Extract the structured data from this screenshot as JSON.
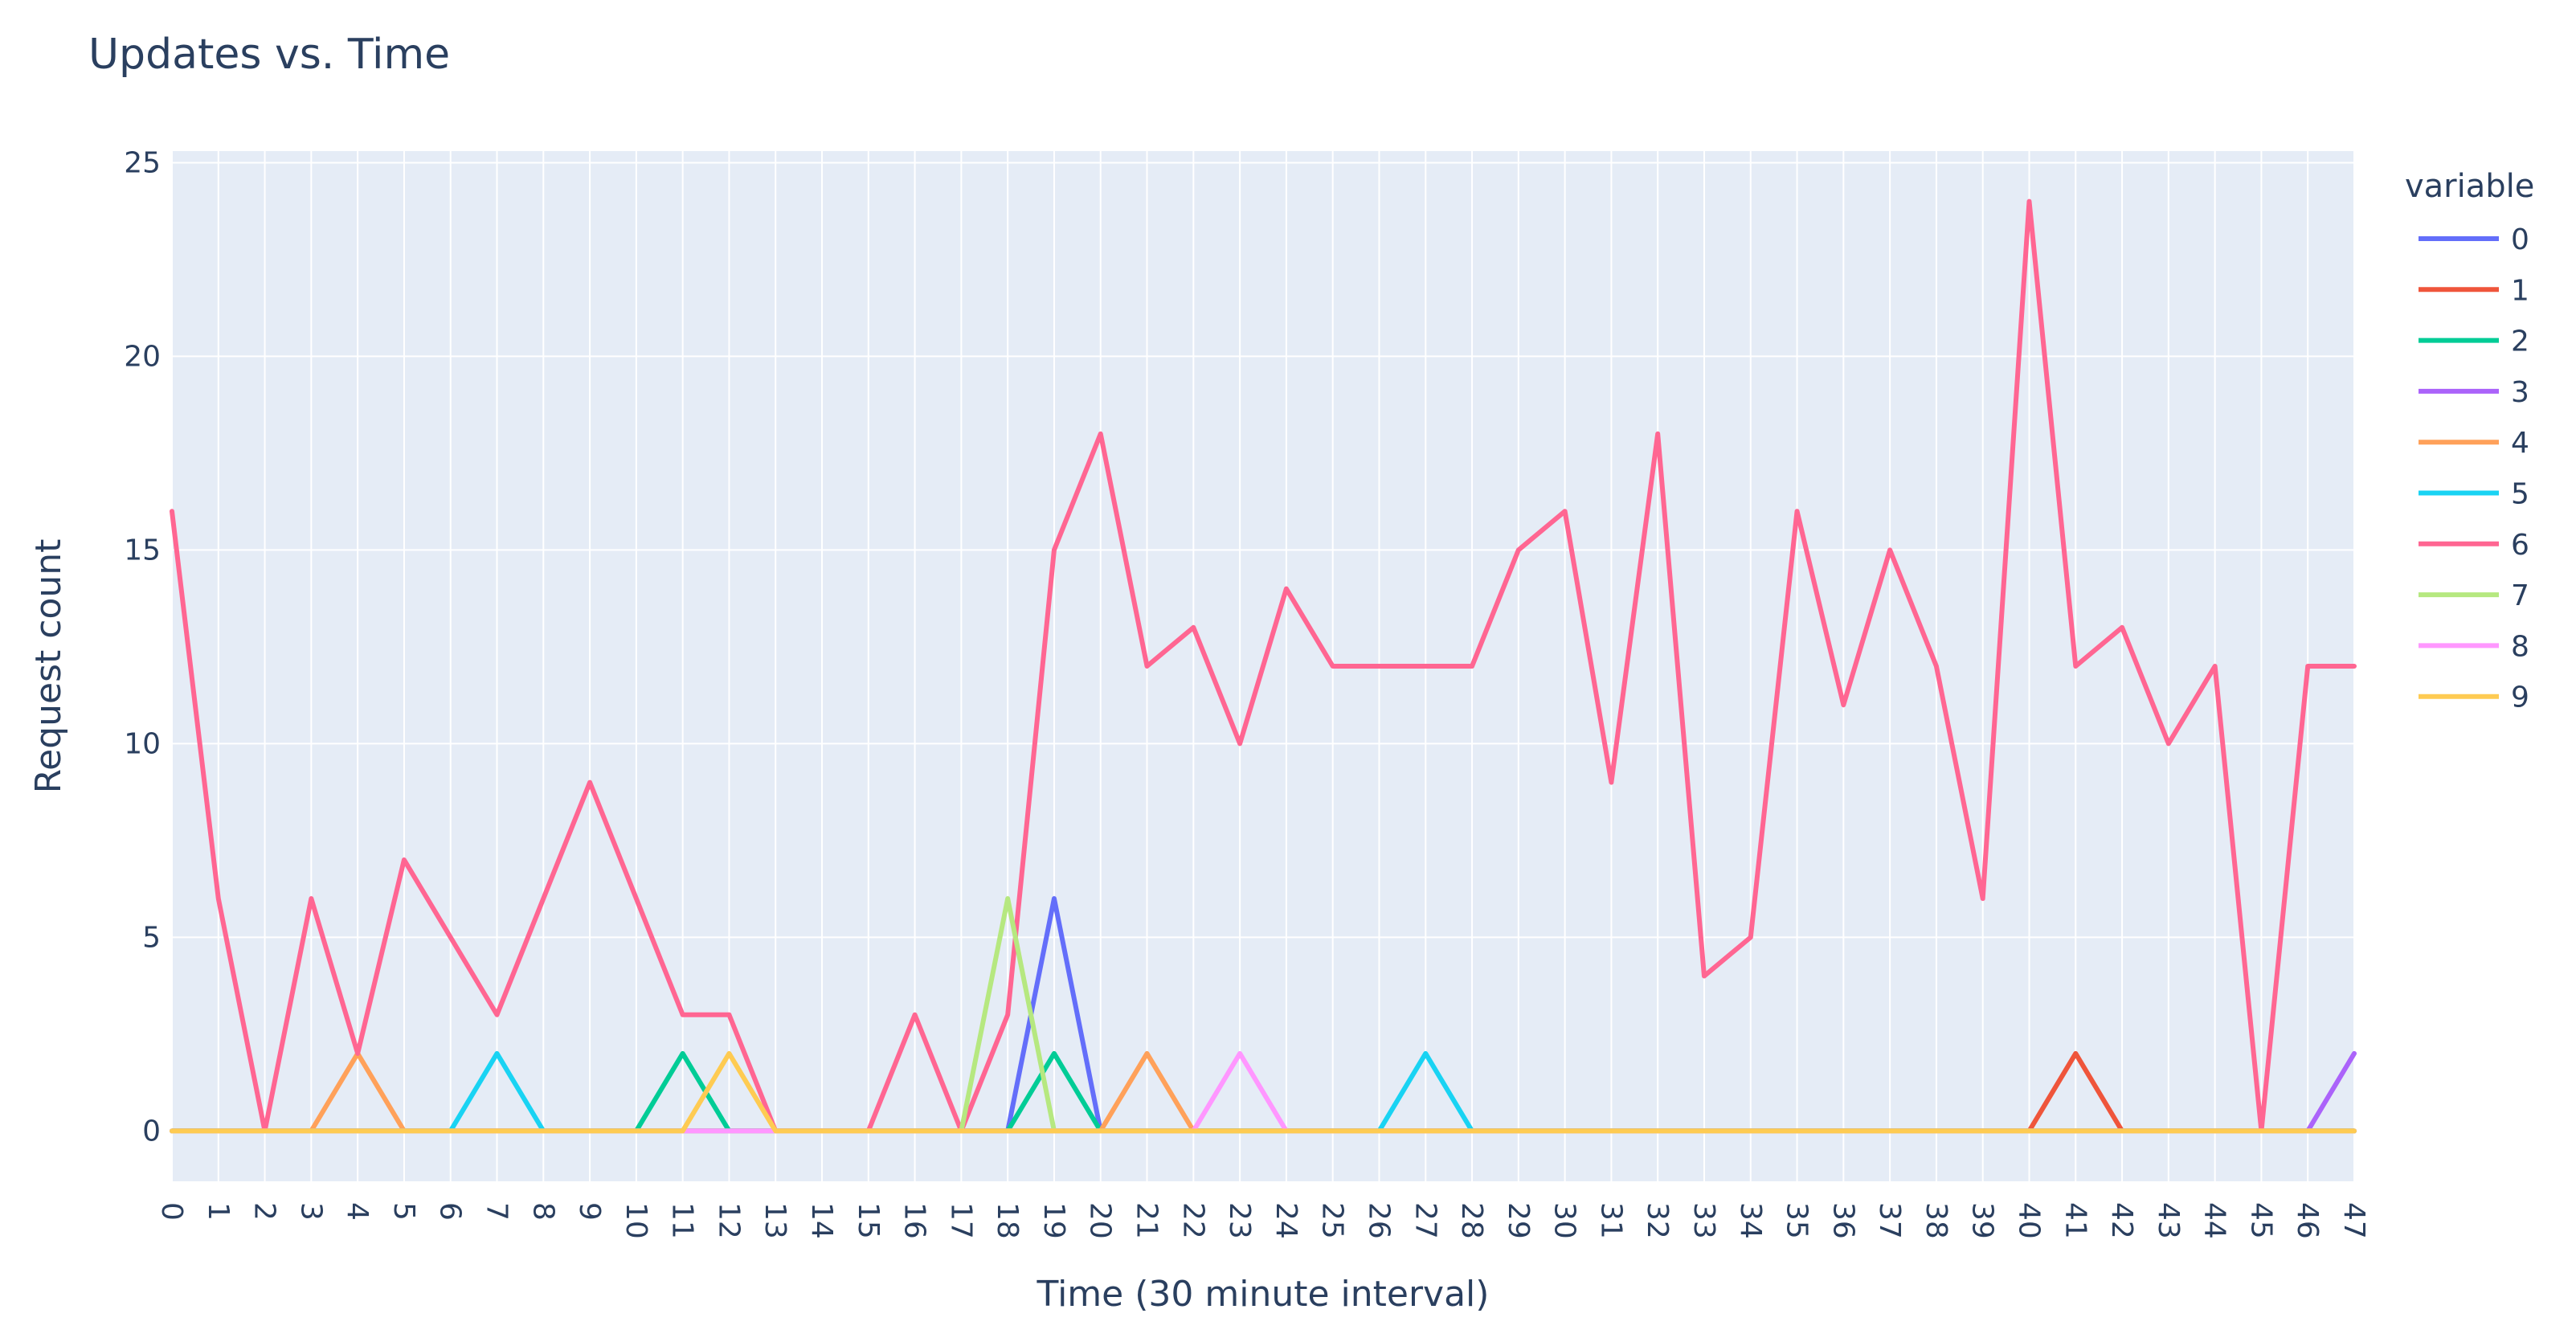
{
  "chart_data": {
    "type": "line",
    "title": "Updates vs. Time",
    "xlabel": "Time (30 minute interval)",
    "ylabel": "Request count",
    "x": [
      0,
      1,
      2,
      3,
      4,
      5,
      6,
      7,
      8,
      9,
      10,
      11,
      12,
      13,
      14,
      15,
      16,
      17,
      18,
      19,
      20,
      21,
      22,
      23,
      24,
      25,
      26,
      27,
      28,
      29,
      30,
      31,
      32,
      33,
      34,
      35,
      36,
      37,
      38,
      39,
      40,
      41,
      42,
      43,
      44,
      45,
      46,
      47
    ],
    "x_tick_labels": [
      "0",
      "1",
      "2",
      "3",
      "4",
      "5",
      "6",
      "7",
      "8",
      "9",
      "10",
      "11",
      "12",
      "13",
      "14",
      "15",
      "16",
      "17",
      "18",
      "19",
      "20",
      "21",
      "22",
      "23",
      "24",
      "25",
      "26",
      "27",
      "28",
      "29",
      "30",
      "31",
      "32",
      "33",
      "34",
      "35",
      "36",
      "37",
      "38",
      "39",
      "40",
      "41",
      "42",
      "43",
      "44",
      "45",
      "46",
      "47"
    ],
    "xlim": [
      0,
      47
    ],
    "ylim": [
      -1.3,
      25.3
    ],
    "y_ticks": [
      0,
      5,
      10,
      15,
      20,
      25
    ],
    "y_tick_labels": [
      "0",
      "5",
      "10",
      "15",
      "20",
      "25"
    ],
    "grid": true,
    "legend_title": "variable",
    "legend_position": "right",
    "plot_background": "#e5ecf6",
    "series": [
      {
        "name": "0",
        "color": "#636efa",
        "values": [
          0,
          0,
          0,
          0,
          0,
          0,
          0,
          0,
          0,
          0,
          0,
          0,
          0,
          0,
          0,
          0,
          0,
          0,
          0,
          6,
          0,
          0,
          0,
          0,
          0,
          0,
          0,
          0,
          0,
          0,
          0,
          0,
          0,
          0,
          0,
          0,
          0,
          0,
          0,
          0,
          0,
          0,
          0,
          0,
          0,
          0,
          0,
          0
        ]
      },
      {
        "name": "1",
        "color": "#ef553b",
        "values": [
          0,
          0,
          0,
          0,
          0,
          0,
          0,
          0,
          0,
          0,
          0,
          0,
          0,
          0,
          0,
          0,
          0,
          0,
          0,
          0,
          0,
          0,
          0,
          0,
          0,
          0,
          0,
          0,
          0,
          0,
          0,
          0,
          0,
          0,
          0,
          0,
          0,
          0,
          0,
          0,
          0,
          2,
          0,
          0,
          0,
          0,
          0,
          0
        ]
      },
      {
        "name": "2",
        "color": "#00cc96",
        "values": [
          0,
          0,
          0,
          0,
          0,
          0,
          0,
          0,
          0,
          0,
          0,
          2,
          0,
          0,
          0,
          0,
          0,
          0,
          0,
          2,
          0,
          0,
          0,
          0,
          0,
          0,
          0,
          0,
          0,
          0,
          0,
          0,
          0,
          0,
          0,
          0,
          0,
          0,
          0,
          0,
          0,
          0,
          0,
          0,
          0,
          0,
          0,
          0
        ]
      },
      {
        "name": "3",
        "color": "#ab63fa",
        "values": [
          0,
          0,
          0,
          0,
          0,
          0,
          0,
          0,
          0,
          0,
          0,
          0,
          0,
          0,
          0,
          0,
          0,
          0,
          0,
          0,
          0,
          0,
          0,
          0,
          0,
          0,
          0,
          0,
          0,
          0,
          0,
          0,
          0,
          0,
          0,
          0,
          0,
          0,
          0,
          0,
          0,
          0,
          0,
          0,
          0,
          0,
          0,
          2
        ]
      },
      {
        "name": "4",
        "color": "#ffa15a",
        "values": [
          0,
          0,
          0,
          0,
          2,
          0,
          0,
          0,
          0,
          0,
          0,
          0,
          0,
          0,
          0,
          0,
          0,
          0,
          0,
          0,
          0,
          2,
          0,
          0,
          0,
          0,
          0,
          0,
          0,
          0,
          0,
          0,
          0,
          0,
          0,
          0,
          0,
          0,
          0,
          0,
          0,
          0,
          0,
          0,
          0,
          0,
          0,
          0
        ]
      },
      {
        "name": "5",
        "color": "#19d3f3",
        "values": [
          0,
          0,
          0,
          0,
          0,
          0,
          0,
          2,
          0,
          0,
          0,
          0,
          0,
          0,
          0,
          0,
          0,
          0,
          0,
          0,
          0,
          0,
          0,
          0,
          0,
          0,
          0,
          2,
          0,
          0,
          0,
          0,
          0,
          0,
          0,
          0,
          0,
          0,
          0,
          0,
          0,
          0,
          0,
          0,
          0,
          0,
          0,
          0
        ]
      },
      {
        "name": "6",
        "color": "#ff6692",
        "values": [
          16,
          6,
          0,
          6,
          2,
          7,
          5,
          3,
          6,
          9,
          6,
          3,
          3,
          0,
          0,
          0,
          3,
          0,
          3,
          15,
          18,
          12,
          13,
          10,
          14,
          12,
          12,
          12,
          12,
          15,
          16,
          9,
          18,
          4,
          5,
          16,
          11,
          15,
          12,
          6,
          24,
          12,
          13,
          10,
          12,
          0,
          12,
          12
        ]
      },
      {
        "name": "7",
        "color": "#b6e880",
        "values": [
          0,
          0,
          0,
          0,
          0,
          0,
          0,
          0,
          0,
          0,
          0,
          0,
          0,
          0,
          0,
          0,
          0,
          0,
          6,
          0,
          0,
          0,
          0,
          0,
          0,
          0,
          0,
          0,
          0,
          0,
          0,
          0,
          0,
          0,
          0,
          0,
          0,
          0,
          0,
          0,
          0,
          0,
          0,
          0,
          0,
          0,
          0,
          0
        ]
      },
      {
        "name": "8",
        "color": "#ff97ff",
        "values": [
          0,
          0,
          0,
          0,
          0,
          0,
          0,
          0,
          0,
          0,
          0,
          0,
          0,
          0,
          0,
          0,
          0,
          0,
          0,
          0,
          0,
          0,
          0,
          2,
          0,
          0,
          0,
          0,
          0,
          0,
          0,
          0,
          0,
          0,
          0,
          0,
          0,
          0,
          0,
          0,
          0,
          0,
          0,
          0,
          0,
          0,
          0,
          0
        ]
      },
      {
        "name": "9",
        "color": "#fecb52",
        "values": [
          0,
          0,
          0,
          0,
          0,
          0,
          0,
          0,
          0,
          0,
          0,
          0,
          2,
          0,
          0,
          0,
          0,
          0,
          0,
          0,
          0,
          0,
          0,
          0,
          0,
          0,
          0,
          0,
          0,
          0,
          0,
          0,
          0,
          0,
          0,
          0,
          0,
          0,
          0,
          0,
          0,
          0,
          0,
          0,
          0,
          0,
          0,
          0
        ]
      }
    ]
  }
}
